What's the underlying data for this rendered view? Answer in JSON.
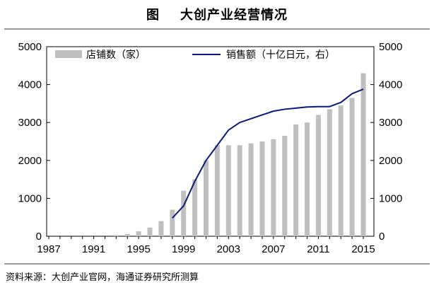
{
  "title": "图    大创产业经营情况",
  "source": "资料来源：大创产业官网，海通证券研究所测算",
  "chart_data": {
    "type": "bar+line",
    "years": [
      1987,
      1988,
      1989,
      1990,
      1991,
      1992,
      1993,
      1994,
      1995,
      1996,
      1997,
      1998,
      1999,
      2000,
      2001,
      2002,
      2003,
      2004,
      2005,
      2006,
      2007,
      2008,
      2009,
      2010,
      2011,
      2012,
      2013,
      2014,
      2015
    ],
    "x_tick_labels": [
      "1987",
      "1991",
      "1995",
      "1999",
      "2003",
      "2007",
      "2011",
      "2015"
    ],
    "x_tick_years": [
      1987,
      1991,
      1995,
      1999,
      2003,
      2007,
      2011,
      2015
    ],
    "y_left": {
      "ylim": [
        0,
        5000
      ],
      "ticks": [
        "0",
        "1000",
        "2000",
        "3000",
        "4000",
        "5000"
      ]
    },
    "y_right": {
      "ylim": [
        0,
        5000
      ],
      "ticks": [
        "0",
        "1000",
        "2000",
        "3000",
        "4000",
        "5000"
      ]
    },
    "series": [
      {
        "name": "店铺数（家）",
        "type": "bar",
        "axis": "left",
        "color": "#bfbfbf",
        "values": [
          0,
          0,
          0,
          0,
          0,
          0,
          30,
          60,
          130,
          230,
          400,
          700,
          1200,
          1500,
          2000,
          2400,
          2400,
          2400,
          2450,
          2500,
          2560,
          2650,
          2950,
          3000,
          3200,
          3350,
          3450,
          3650,
          4300
        ]
      },
      {
        "name": "销售额（十亿日元，右）",
        "type": "line",
        "axis": "right",
        "color": "#0a1a7a",
        "x": [
          1998,
          1999,
          2000,
          2001,
          2002,
          2003,
          2004,
          2005,
          2006,
          2007,
          2008,
          2009,
          2010,
          2011,
          2012,
          2013,
          2014,
          2015
        ],
        "values": [
          480,
          800,
          1450,
          2000,
          2400,
          2800,
          3000,
          3100,
          3200,
          3300,
          3350,
          3380,
          3410,
          3420,
          3420,
          3530,
          3760,
          3880
        ]
      }
    ]
  }
}
